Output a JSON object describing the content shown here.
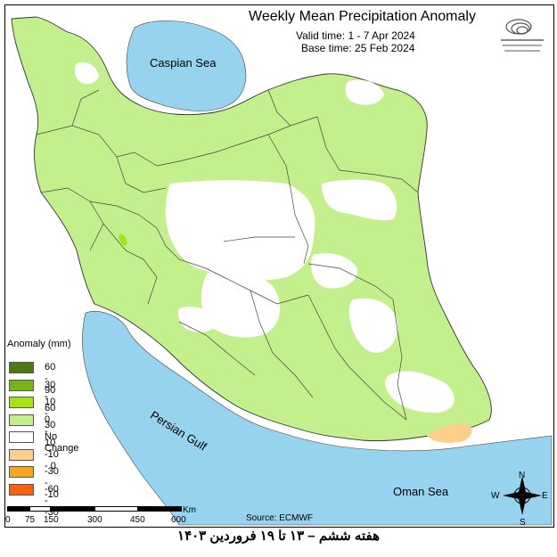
{
  "map": {
    "title": "Weekly Mean Precipitation Anomaly",
    "valid_time": "Valid time:  1 - 7 Apr 2024",
    "base_time": "Base time: 25 Feb 2024",
    "source": "Source: ECMWF",
    "labels": {
      "caspian": "Caspian Sea",
      "persian_gulf": "Persian Gulf",
      "oman_sea": "Oman Sea"
    },
    "compass": {
      "n": "N",
      "s": "S",
      "e": "E",
      "w": "W"
    },
    "colors": {
      "sea": "#97d3ef",
      "land_anomaly_0_10": "#c3f08c",
      "no_change": "#ffffff",
      "neg_10_0": "#fdd08a",
      "border": "#444444"
    }
  },
  "legend": {
    "title": "Anomaly (mm)",
    "items": [
      {
        "label": "60 - 90",
        "color": "#4c7a12"
      },
      {
        "label": "30 - 60",
        "color": "#77b41a"
      },
      {
        "label": "10 - 30",
        "color": "#a5e312"
      },
      {
        "label": "0 - 10",
        "color": "#c3f08c"
      },
      {
        "label": "No Change",
        "color": "#ffffff"
      },
      {
        "label": "-10 - 0",
        "color": "#fdd08a"
      },
      {
        "label": "-30 - -10",
        "color": "#f7a51d"
      },
      {
        "label": "-60 - -30",
        "color": "#f4640f"
      }
    ]
  },
  "scale": {
    "ticks": [
      "0",
      "75",
      "150",
      "300",
      "450",
      "600"
    ],
    "unit": "Km"
  },
  "footer": "هفته ششم – ۱۳ تا ۱۹ فروردین ۱۴۰۳"
}
